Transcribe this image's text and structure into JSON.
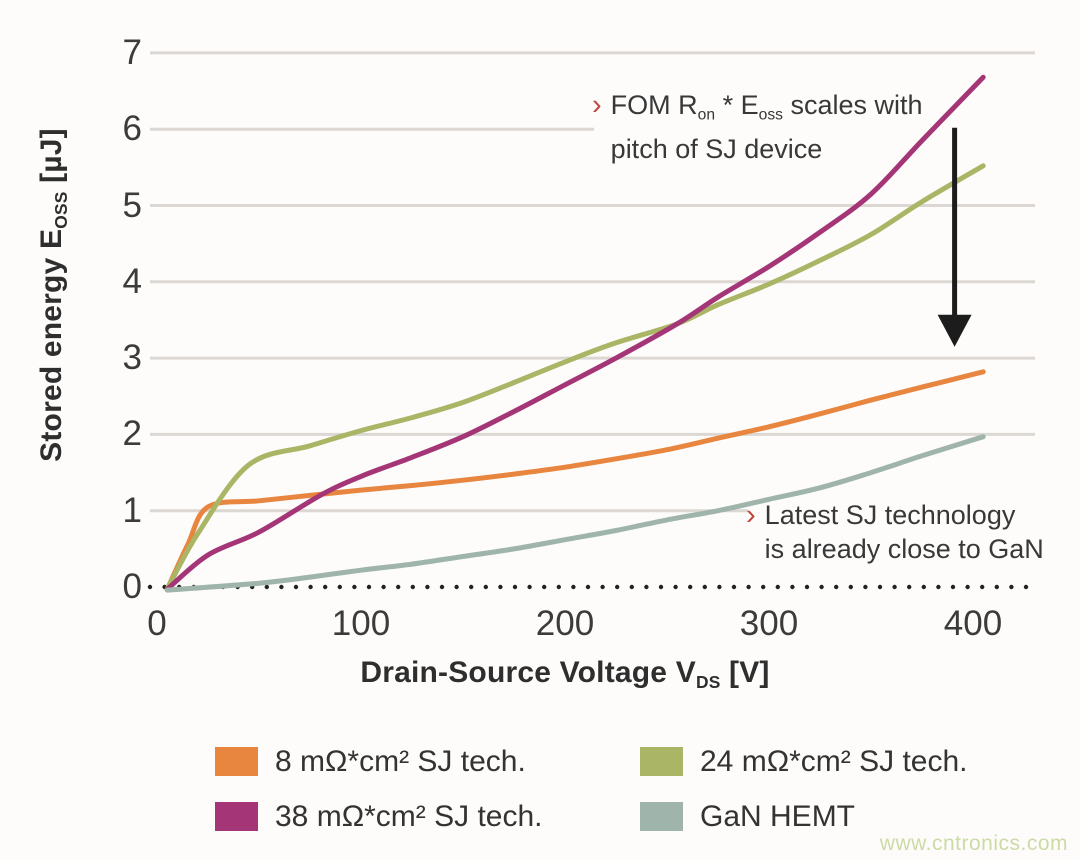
{
  "page": {
    "background": "#fdfcfb"
  },
  "colors": {
    "gridline": "#dcd7d2",
    "zero_dotted_line": "#222222",
    "tick_text": "#3b3b3b",
    "axis_title_text": "#2e2e2e",
    "annotation_text": "#383838",
    "annotation_marker": "#c2453e",
    "arrow": "#1c1c1c"
  },
  "chart_data": {
    "type": "line",
    "title": "",
    "xlabel": "Drain-Source Voltage V_DS [V]",
    "ylabel": "Stored energy E_OSS [µJ]",
    "xlabel_segments": [
      {
        "t": "Drain-Source Voltage V"
      },
      {
        "t": "DS",
        "sub": true
      },
      {
        "t": " [V]"
      }
    ],
    "ylabel_segments": [
      {
        "t": "Stored energy E"
      },
      {
        "t": "OSS",
        "sub": true
      },
      {
        "t": " [µJ]"
      }
    ],
    "xlim": [
      0,
      410
    ],
    "ylim": [
      0,
      7
    ],
    "x_ticks": [
      0,
      100,
      200,
      300,
      400
    ],
    "y_ticks": [
      0,
      1,
      2,
      3,
      4,
      5,
      6,
      7
    ],
    "grid": "horizontal light-gray gridlines at y=1..7; dotted black line at y=0",
    "legend_position": "bottom",
    "series": [
      {
        "name": "8 mΩ*cm² SJ tech.",
        "color": "#e8853f",
        "points": [
          [
            5,
            -0.03
          ],
          [
            15,
            0.55
          ],
          [
            25,
            1.05
          ],
          [
            50,
            1.13
          ],
          [
            75,
            1.2
          ],
          [
            100,
            1.27
          ],
          [
            125,
            1.33
          ],
          [
            150,
            1.4
          ],
          [
            175,
            1.48
          ],
          [
            200,
            1.57
          ],
          [
            225,
            1.68
          ],
          [
            250,
            1.8
          ],
          [
            275,
            1.95
          ],
          [
            300,
            2.1
          ],
          [
            325,
            2.27
          ],
          [
            350,
            2.45
          ],
          [
            375,
            2.62
          ],
          [
            405,
            2.82
          ]
        ]
      },
      {
        "name": "24 mΩ*cm² SJ tech.",
        "color": "#aab565",
        "points": [
          [
            5,
            -0.03
          ],
          [
            20,
            0.7
          ],
          [
            45,
            1.6
          ],
          [
            75,
            1.85
          ],
          [
            100,
            2.05
          ],
          [
            125,
            2.22
          ],
          [
            150,
            2.42
          ],
          [
            175,
            2.68
          ],
          [
            200,
            2.95
          ],
          [
            225,
            3.2
          ],
          [
            255,
            3.45
          ],
          [
            275,
            3.7
          ],
          [
            300,
            3.97
          ],
          [
            325,
            4.28
          ],
          [
            350,
            4.62
          ],
          [
            375,
            5.05
          ],
          [
            405,
            5.52
          ]
        ]
      },
      {
        "name": "38 mΩ*cm² SJ tech.",
        "color": "#a43677",
        "points": [
          [
            5,
            -0.03
          ],
          [
            25,
            0.42
          ],
          [
            50,
            0.72
          ],
          [
            80,
            1.2
          ],
          [
            100,
            1.45
          ],
          [
            125,
            1.7
          ],
          [
            150,
            1.97
          ],
          [
            175,
            2.3
          ],
          [
            200,
            2.65
          ],
          [
            225,
            3.0
          ],
          [
            255,
            3.45
          ],
          [
            275,
            3.8
          ],
          [
            300,
            4.2
          ],
          [
            325,
            4.65
          ],
          [
            350,
            5.15
          ],
          [
            375,
            5.85
          ],
          [
            405,
            6.68
          ]
        ]
      },
      {
        "name": "GaN HEMT",
        "color": "#9fb5ab",
        "points": [
          [
            5,
            -0.04
          ],
          [
            50,
            0.05
          ],
          [
            75,
            0.13
          ],
          [
            100,
            0.22
          ],
          [
            125,
            0.3
          ],
          [
            150,
            0.4
          ],
          [
            175,
            0.5
          ],
          [
            200,
            0.62
          ],
          [
            225,
            0.74
          ],
          [
            250,
            0.88
          ],
          [
            275,
            1.0
          ],
          [
            300,
            1.15
          ],
          [
            325,
            1.3
          ],
          [
            350,
            1.5
          ],
          [
            375,
            1.72
          ],
          [
            405,
            1.97
          ]
        ]
      }
    ],
    "annotations": [
      {
        "id": "fom-scaling",
        "marker": "›",
        "plain_text": "FOM Ron * Eoss scales with pitch of SJ device",
        "lines": [
          [
            {
              "t": "FOM R"
            },
            {
              "t": "on",
              "sub": true
            },
            {
              "t": " * E"
            },
            {
              "t": "oss",
              "sub": true
            },
            {
              "t": " scales with"
            }
          ],
          [
            {
              "t": "pitch of SJ device"
            }
          ]
        ]
      },
      {
        "id": "sj-close-to-gan",
        "marker": "›",
        "plain_text": "Latest SJ technology is already close to GaN",
        "lines": [
          [
            {
              "t": "Latest SJ technology"
            }
          ],
          [
            {
              "t": "is already close to GaN"
            }
          ]
        ]
      }
    ],
    "arrow": {
      "x_v": 391,
      "from_e": 6.02,
      "to_e": 3.15
    }
  },
  "legend": {
    "items": [
      {
        "label": "8 mΩ*cm² SJ tech.",
        "color": "#e8853f"
      },
      {
        "label": "24 mΩ*cm² SJ tech.",
        "color": "#aab565"
      },
      {
        "label": "38 mΩ*cm² SJ tech.",
        "color": "#a43677"
      },
      {
        "label": "GaN HEMT",
        "color": "#9fb5ab"
      }
    ]
  },
  "watermark": {
    "text": "www.cntronics.com"
  }
}
